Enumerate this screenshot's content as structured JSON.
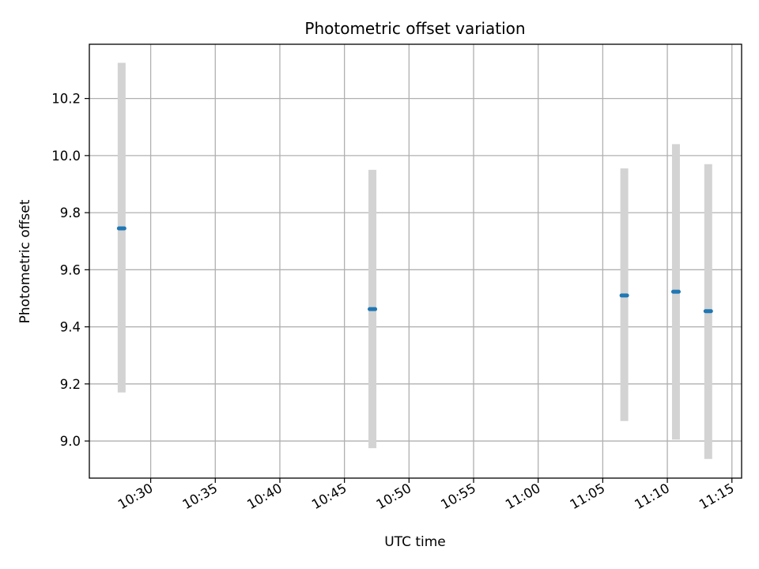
{
  "chart_data": {
    "type": "scatter",
    "title": "Photometric offset variation",
    "xlabel": "UTC time",
    "ylabel": "Photometric offset",
    "x_type": "time",
    "x_unit": "minutes since 00:00 UTC",
    "xlim": [
      "10:25:15",
      "11:15:45"
    ],
    "ylim": [
      8.87,
      10.39
    ],
    "x_ticks": [
      "10:30",
      "10:35",
      "10:40",
      "10:45",
      "10:50",
      "10:55",
      "11:00",
      "11:05",
      "11:10",
      "11:15"
    ],
    "y_ticks": [
      "9.0",
      "9.2",
      "9.4",
      "9.6",
      "9.8",
      "10.0",
      "10.2"
    ],
    "grid": true,
    "legend": "none",
    "colors": {
      "marker": "#1f77b4",
      "errorbar": "#d3d3d3",
      "grid": "#b0b0b0"
    },
    "series": [
      {
        "points": [
          {
            "x": "10:27:45",
            "y": 9.745,
            "err_low": 9.17,
            "err_high": 10.325
          },
          {
            "x": "10:47:10",
            "y": 9.462,
            "err_low": 8.975,
            "err_high": 9.95
          },
          {
            "x": "11:06:40",
            "y": 9.51,
            "err_low": 9.07,
            "err_high": 9.955
          },
          {
            "x": "11:10:40",
            "y": 9.523,
            "err_low": 9.005,
            "err_high": 10.04
          },
          {
            "x": "11:13:10",
            "y": 9.455,
            "err_low": 8.937,
            "err_high": 9.97
          }
        ]
      }
    ]
  }
}
